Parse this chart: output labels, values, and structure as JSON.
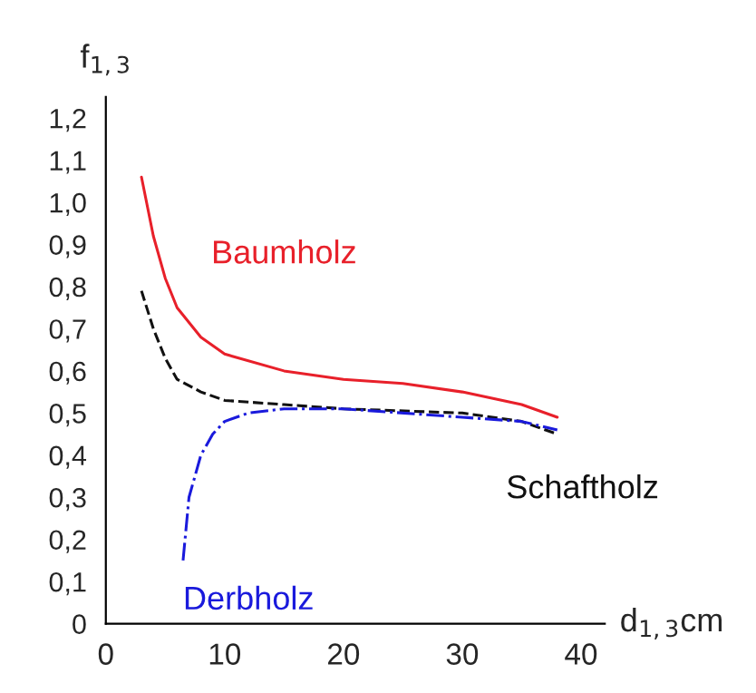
{
  "chart_data": {
    "type": "line",
    "ylabel": "f$_{1,3}$",
    "xlabel": "d$_{1,3}$cm",
    "xlim": [
      0,
      42
    ],
    "xticks": [
      0,
      10,
      20,
      30,
      40
    ],
    "ylim": [
      0,
      1.25
    ],
    "yticks": [
      0,
      {
        "value": 0.1,
        "label": "0,1"
      },
      {
        "value": 0.2,
        "label": "0,2"
      },
      {
        "value": 0.3,
        "label": "0,3"
      },
      {
        "value": 0.4,
        "label": "0,4"
      },
      {
        "value": 0.5,
        "label": "0,5"
      },
      {
        "value": 0.6,
        "label": "0,6"
      },
      {
        "value": 0.7,
        "label": "0,7"
      },
      {
        "value": 0.8,
        "label": "0,8"
      },
      {
        "value": 0.9,
        "label": "0,9"
      },
      {
        "value": 1.0,
        "label": "1,0"
      },
      {
        "value": 1.1,
        "label": "1,1"
      },
      {
        "value": 1.2,
        "label": "1,2"
      }
    ],
    "grid": false,
    "legend": false,
    "series": [
      {
        "name": "Baumholz",
        "color": "#e8202a",
        "line_style": "solid",
        "x": [
          3,
          4,
          5,
          6,
          8,
          10,
          15,
          20,
          25,
          30,
          35,
          38
        ],
        "values": [
          1.06,
          0.92,
          0.82,
          0.75,
          0.68,
          0.64,
          0.6,
          0.58,
          0.57,
          0.55,
          0.52,
          0.49
        ]
      },
      {
        "name": "Schaftholz",
        "color": "#111111",
        "line_style": "dashed",
        "x": [
          3,
          4,
          5,
          6,
          8,
          10,
          15,
          20,
          30,
          35,
          38
        ],
        "values": [
          0.79,
          0.7,
          0.63,
          0.58,
          0.55,
          0.53,
          0.52,
          0.51,
          0.5,
          0.48,
          0.45
        ]
      },
      {
        "name": "Derbholz",
        "color": "#1a1adc",
        "line_style": "dashdot",
        "x": [
          6.5,
          7,
          8,
          9,
          10,
          12,
          15,
          20,
          30,
          35,
          38
        ],
        "values": [
          0.15,
          0.3,
          0.4,
          0.45,
          0.48,
          0.5,
          0.51,
          0.51,
          0.49,
          0.48,
          0.46
        ]
      }
    ]
  }
}
